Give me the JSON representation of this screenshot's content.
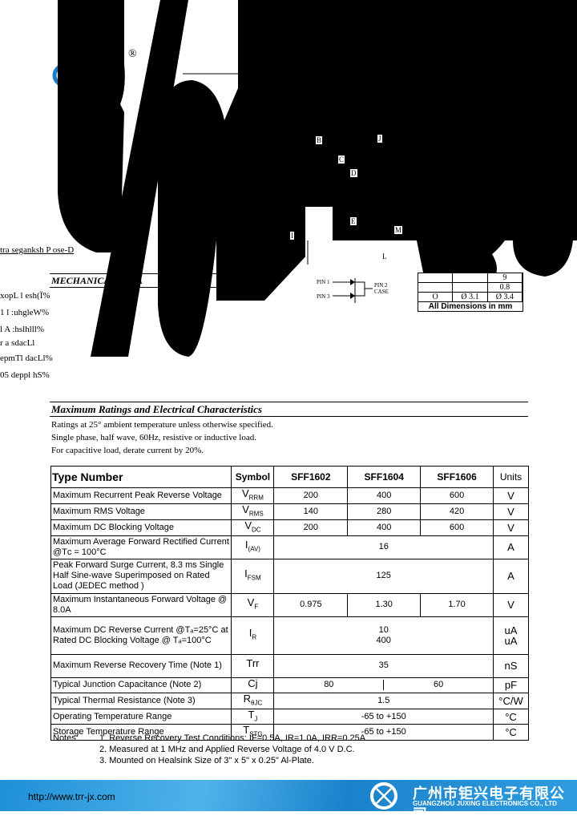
{
  "header": {
    "registered_mark": "®"
  },
  "mechanical": {
    "title": "MECHANICAL DATA",
    "lines": [
      "xopL l esh(Ï%",
      "1 l :uhgleW%",
      "l A :hslhlll%",
      "r a sdacLl",
      "epmTl dacLl%",
      "05 deppl hS%"
    ],
    "features_fragment": "tra  seganksh P  ose-D"
  },
  "diagram": {
    "labels": [
      "B",
      "C",
      "D",
      "J",
      "E",
      "M",
      "I",
      "L"
    ],
    "pins": [
      "PIN 1",
      "PIN 3",
      "PIN 2 CASE"
    ],
    "pin_numbers": "1 2 3"
  },
  "dim_table": {
    "rows": [
      [
        "",
        "",
        "9"
      ],
      [
        "",
        "",
        "0.8"
      ],
      [
        "O",
        "Ø 3.1",
        "Ø 3.4"
      ]
    ],
    "footer": "All Dimensions in mm"
  },
  "ratings": {
    "title": "Maximum Ratings and Electrical Characteristics",
    "conditions": [
      "Ratings at 25° ambient temperature unless otherwise specified.",
      "Single phase, half wave, 60Hz, resistive or inductive load.",
      "For capacitive load, derate current by 20%."
    ],
    "headers": [
      "Type Number",
      "Symbol",
      "SFF1602",
      "SFF1604",
      "SFF1606",
      "Units"
    ],
    "rows": [
      {
        "param": "Maximum Recurrent Peak Reverse Voltage",
        "sym": "V",
        "sub": "RRM",
        "vals": [
          "200",
          "400",
          "600"
        ],
        "unit": "V"
      },
      {
        "param": "Maximum RMS Voltage",
        "sym": "V",
        "sub": "RMS",
        "vals": [
          "140",
          "280",
          "420"
        ],
        "unit": "V"
      },
      {
        "param": "Maximum DC Blocking Voltage",
        "sym": "V",
        "sub": "DC",
        "vals": [
          "200",
          "400",
          "600"
        ],
        "unit": "V"
      },
      {
        "param": "Maximum Average Forward Rectified Current @Tᴄ = 100°C",
        "sym": "I",
        "sub": "(AV)",
        "vals": [
          "16"
        ],
        "unit": "A"
      },
      {
        "param": "Peak Forward Surge Current, 8.3 ms Single Half Sine-wave Superimposed on Rated Load (JEDEC method )",
        "sym": "I",
        "sub": "FSM",
        "vals": [
          "125"
        ],
        "unit": "A"
      },
      {
        "param": "Maximum Instantaneous Forward Voltage @ 8.0A",
        "sym": "V",
        "sub": "F",
        "vals": [
          "0.975",
          "1.30",
          "1.70"
        ],
        "unit": "V"
      },
      {
        "param": "Maximum DC Reverse Current @Tₐ=25°C at Rated DC Blocking Voltage @ Tₐ=100°C",
        "sym": "I",
        "sub": "R",
        "vals": [
          "10\n400"
        ],
        "unit": "uA\nuA"
      },
      {
        "param": "Maximum Reverse Recovery Time (Note 1)",
        "sym": "Trr",
        "sub": "",
        "vals": [
          "35"
        ],
        "unit": "nS"
      },
      {
        "param": "Typical Junction Capacitance (Note 2)",
        "sym": "Cj",
        "sub": "",
        "vals": [
          "80",
          "60"
        ],
        "unit": "pF"
      },
      {
        "param": "Typical Thermal Resistance (Note 3)",
        "sym": "R",
        "sub": "θJC",
        "vals": [
          "1.5"
        ],
        "unit": "°C/W"
      },
      {
        "param": "Operating Temperature Range",
        "sym": "T",
        "sub": "J",
        "vals": [
          "-65 to +150"
        ],
        "unit": "°C"
      },
      {
        "param": "Storage Temperature Range",
        "sym": "T",
        "sub": "STG",
        "vals": [
          "-65 to +150"
        ],
        "unit": "°C"
      }
    ]
  },
  "notes": {
    "label": "Notes:",
    "items": [
      "1. Reverse Recovery Test Conditions: IF=0.5A, IR=1.0A, IRR=0.25A",
      "2. Measured at 1 MHz and Applied Reverse Voltage of 4.0 V D.C.",
      "3. Mounted on Healsink Size of 3\" x 5\" x 0.25\" Al-Plate."
    ]
  },
  "footer": {
    "url": "http://www.trr-jx.com",
    "company_cn": "广州市钜兴电子有限公司",
    "company_en": "GUANGZHOU JUXING ELECTRONICS CO., LTD"
  }
}
